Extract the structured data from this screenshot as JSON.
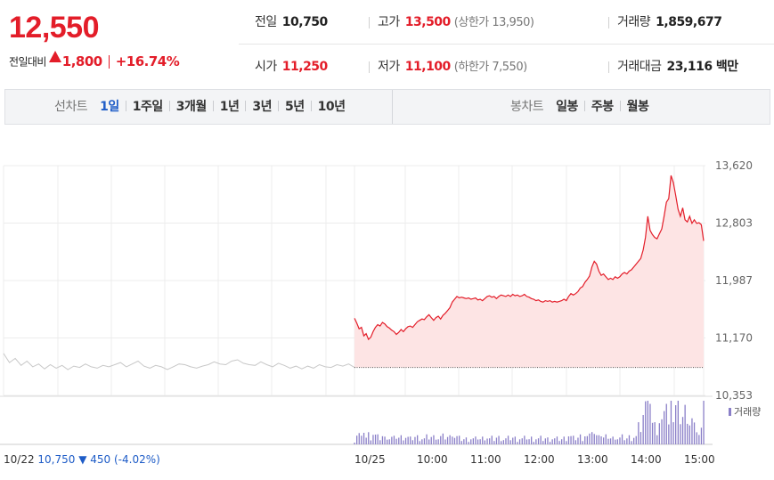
{
  "quote": {
    "price": "12,550",
    "change_label": "전일대비",
    "change_amount": "1,800",
    "change_percent": "+16.74%",
    "prev_close_label": "전일",
    "prev_close": "10,750",
    "high_label": "고가",
    "high": "13,500",
    "upper_limit": "(상한가 13,950)",
    "volume_label": "거래량",
    "volume": "1,859,677",
    "open_label": "시가",
    "open": "11,250",
    "low_label": "저가",
    "low": "11,100",
    "lower_limit": "(하한가 7,550)",
    "turnover_label": "거래대금",
    "turnover": "23,116 백만",
    "up_color": "#e31d29",
    "down_color": "#1e5cc7"
  },
  "period_bar": {
    "line_label": "선차트",
    "line_options": [
      "1일",
      "1주일",
      "3개월",
      "1년",
      "3년",
      "5년",
      "10년"
    ],
    "line_active": "1일",
    "candle_label": "봉차트",
    "candle_options": [
      "일봉",
      "주봉",
      "월봉"
    ]
  },
  "chart_data": {
    "type": "line",
    "y_axis_ticks": [
      13620,
      12803,
      11987,
      11170,
      10353
    ],
    "y_tick_labels": [
      "13,620",
      "12,803",
      "11,987",
      "11,170",
      "10,353"
    ],
    "ylim": [
      10353,
      13620
    ],
    "x_tick_labels": [
      "10/22",
      "10/25",
      "10:00",
      "11:00",
      "12:00",
      "13:00",
      "14:00",
      "15:00"
    ],
    "prev_day_summary": {
      "date": "10/22",
      "close": "10,750",
      "change": "▼ 450",
      "percent": "(-4.02%)"
    },
    "reference_price": 10750,
    "volume_legend": "거래량",
    "series": [
      {
        "session": "10/22",
        "color": "#c8c8c8",
        "values": [
          10950,
          10820,
          10880,
          10780,
          10840,
          10760,
          10800,
          10730,
          10790,
          10740,
          10780,
          10720,
          10770,
          10750,
          10800,
          10760,
          10740,
          10780,
          10760,
          10790,
          10820,
          10760,
          10800,
          10840,
          10770,
          10740,
          10780,
          10760,
          10720,
          10760,
          10800,
          10790,
          10760,
          10740,
          10770,
          10790,
          10830,
          10800,
          10790,
          10840,
          10860,
          10810,
          10790,
          10780,
          10830,
          10790,
          10760,
          10810,
          10780,
          10740,
          10770,
          10730,
          10770,
          10740,
          10790,
          10760,
          10750,
          10790,
          10770,
          10800,
          10750
        ]
      },
      {
        "session": "10/25",
        "color": "#e31d29",
        "fill": "#fde4e4",
        "values": [
          11450,
          11380,
          11300,
          11320,
          11200,
          11230,
          11150,
          11180,
          11260,
          11320,
          11360,
          11340,
          11390,
          11370,
          11330,
          11310,
          11280,
          11260,
          11220,
          11250,
          11290,
          11260,
          11300,
          11330,
          11340,
          11320,
          11360,
          11400,
          11420,
          11440,
          11430,
          11470,
          11500,
          11460,
          11420,
          11460,
          11480,
          11440,
          11490,
          11520,
          11560,
          11600,
          11680,
          11720,
          11760,
          11740,
          11750,
          11740,
          11730,
          11740,
          11720,
          11730,
          11740,
          11710,
          11720,
          11700,
          11730,
          11760,
          11770,
          11750,
          11760,
          11730,
          11760,
          11780,
          11770,
          11760,
          11780,
          11760,
          11790,
          11770,
          11780,
          11760,
          11770,
          11790,
          11760,
          11750,
          11730,
          11720,
          11700,
          11710,
          11690,
          11680,
          11700,
          11690,
          11700,
          11680,
          11690,
          11680,
          11690,
          11700,
          11720,
          11700,
          11760,
          11800,
          11780,
          11800,
          11830,
          11880,
          11900,
          11960,
          12000,
          12050,
          12180,
          12260,
          12220,
          12120,
          12060,
          12080,
          12040,
          12000,
          12020,
          12000,
          12040,
          12020,
          12040,
          12080,
          12100,
          12080,
          12120,
          12140,
          12180,
          12220,
          12260,
          12300,
          12420,
          12600,
          12900,
          12700,
          12640,
          12600,
          12580,
          12650,
          12720,
          12900,
          13100,
          13150,
          13480,
          13380,
          13200,
          13000,
          12900,
          13020,
          12850,
          12820,
          12900,
          12800,
          12850,
          12800,
          12810,
          12780,
          12550
        ]
      }
    ]
  }
}
